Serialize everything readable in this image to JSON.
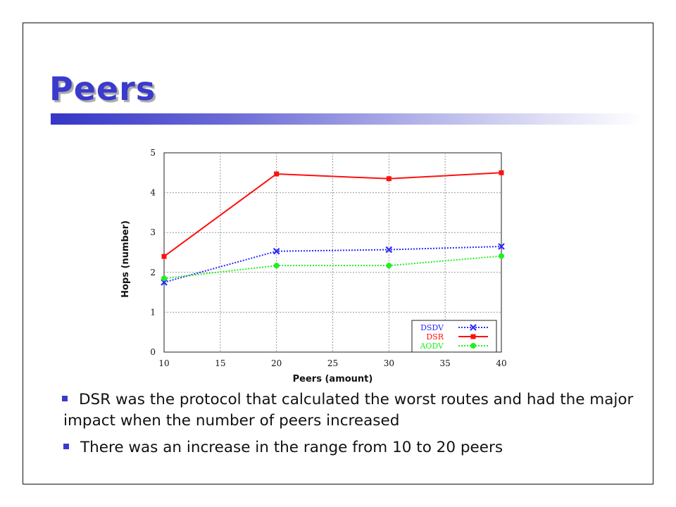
{
  "slide": {
    "title": "Peers",
    "bullets": [
      "DSR was the protocol that calculated the worst routes and had the major impact when the number of peers increased",
      "There was an increase in the range from 10 to 20 peers"
    ]
  },
  "colors": {
    "title": "#3a3acd",
    "bullet": "#3a3acd",
    "DSDV": "#2a2aff",
    "DSR": "#ff1010",
    "AODV": "#22ee22"
  },
  "chart_data": {
    "type": "line",
    "xlabel": "Peers (amount)",
    "ylabel": "Hops (number)",
    "xlim": [
      10,
      40
    ],
    "ylim": [
      0,
      5
    ],
    "xticks": [
      "10",
      "15",
      "20",
      "25",
      "30",
      "35",
      "40"
    ],
    "yticks": [
      "0",
      "1",
      "2",
      "3",
      "4",
      "5"
    ],
    "grid": true,
    "legend_position": "bottom-right",
    "x": [
      10,
      20,
      30,
      40
    ],
    "series": [
      {
        "name": "DSDV",
        "values": [
          1.75,
          2.53,
          2.57,
          2.65
        ],
        "marker": "x",
        "line": "dotted"
      },
      {
        "name": "DSR",
        "values": [
          2.4,
          4.47,
          4.35,
          4.5
        ],
        "marker": "square",
        "line": "solid"
      },
      {
        "name": "AODV",
        "values": [
          1.85,
          2.17,
          2.17,
          2.41
        ],
        "marker": "circle",
        "line": "dotted"
      }
    ]
  }
}
